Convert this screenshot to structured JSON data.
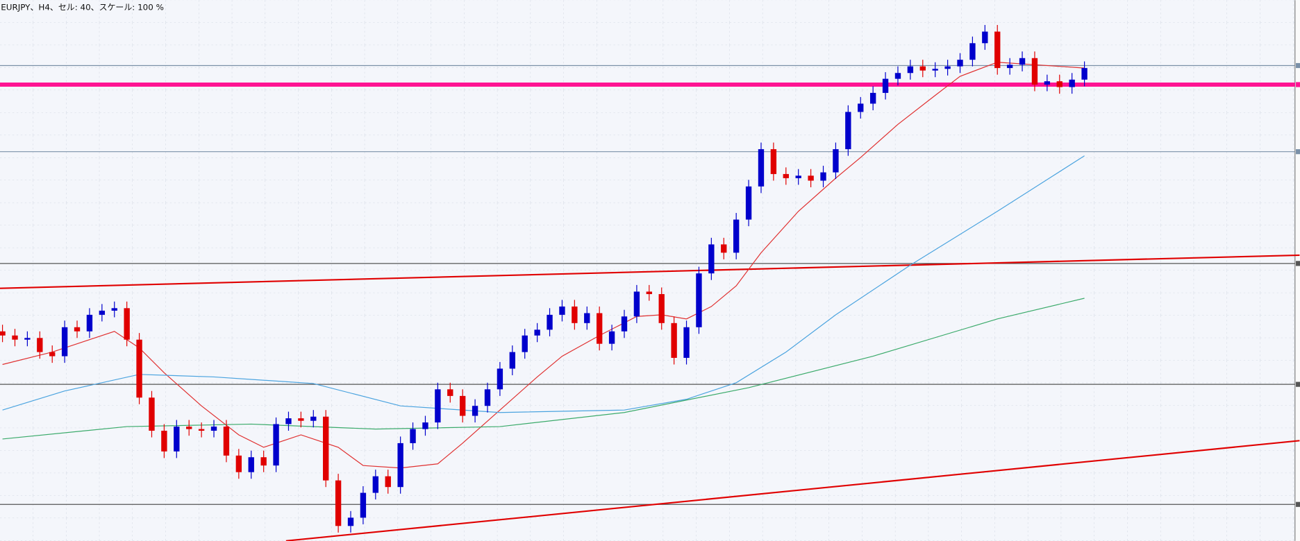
{
  "chart_data": {
    "type": "candlestick",
    "title": "EURJPY、H4、セル: 40、スケール: 100 %",
    "ylim": [
      124.47,
      131
    ],
    "xlim": [
      -0.2,
      104.3
    ],
    "up_color": "#0000cc",
    "down_color": "#e00000",
    "open": [
      127.0,
      126.95,
      126.9,
      126.92,
      126.75,
      126.7,
      127.05,
      127,
      127.2,
      127.25,
      127.28,
      126.9,
      126.2,
      125.8,
      125.55,
      125.85,
      125.82,
      125.8,
      125.85,
      125.5,
      125.3,
      125.48,
      125.38,
      125.88,
      125.95,
      125.92,
      125.97,
      125.2,
      124.65,
      124.75,
      125.05,
      125.25,
      125.12,
      125.65,
      125.82,
      125.9,
      126.3,
      126.22,
      125.98,
      126.1,
      126.3,
      126.55,
      126.75,
      126.95,
      127.02,
      127.2,
      127.3,
      127.1,
      127.22,
      126.85,
      127,
      127.18,
      127.48,
      127.45,
      127.1,
      126.68,
      127.05,
      127.7,
      128.05,
      127.95,
      128.35,
      128.75,
      129.2,
      128.9,
      128.85,
      128.88,
      128.82,
      128.92,
      129.2,
      129.65,
      129.75,
      129.88,
      130.05,
      130.12,
      130.2,
      130.15,
      130.17,
      130.2,
      130.28,
      130.48,
      130.62,
      130.18,
      130.22,
      130.3,
      129.98,
      130.02,
      129.95,
      130.04
    ],
    "high": [
      127.08,
      127.03,
      127.0,
      127.0,
      126.83,
      127.13,
      127.13,
      127.28,
      127.33,
      127.36,
      127.36,
      126.98,
      126.28,
      125.88,
      125.93,
      125.93,
      125.9,
      125.93,
      125.93,
      125.58,
      125.56,
      125.56,
      125.96,
      126.03,
      126.03,
      126.05,
      126.05,
      125.28,
      124.83,
      125.13,
      125.33,
      125.33,
      125.73,
      125.9,
      125.98,
      126.38,
      126.38,
      126.3,
      126.18,
      126.38,
      126.63,
      126.83,
      127.03,
      127.1,
      127.28,
      127.38,
      127.38,
      127.3,
      127.3,
      127.08,
      127.26,
      127.56,
      127.56,
      127.53,
      127.18,
      127.13,
      127.78,
      128.13,
      128.13,
      128.43,
      128.83,
      129.28,
      129.28,
      128.98,
      128.96,
      128.96,
      129.0,
      129.28,
      129.73,
      129.83,
      129.96,
      130.13,
      130.2,
      130.28,
      130.28,
      130.25,
      130.28,
      130.36,
      130.56,
      130.7,
      130.7,
      130.3,
      130.38,
      130.38,
      130.1,
      130.1,
      130.12,
      130.26
    ],
    "low": [
      126.87,
      126.82,
      126.82,
      126.67,
      126.62,
      126.62,
      126.92,
      126.92,
      127.12,
      127.17,
      126.82,
      126.12,
      125.72,
      125.47,
      125.47,
      125.74,
      125.72,
      125.72,
      125.42,
      125.22,
      125.22,
      125.3,
      125.3,
      125.8,
      125.84,
      125.84,
      125.12,
      124.57,
      124.57,
      124.67,
      124.97,
      125.04,
      125.04,
      125.57,
      125.74,
      125.82,
      126.14,
      125.9,
      125.9,
      126.02,
      126.22,
      126.47,
      126.67,
      126.87,
      126.94,
      127.12,
      127.02,
      127.02,
      126.77,
      126.77,
      126.92,
      127.1,
      127.37,
      127.02,
      126.6,
      126.6,
      126.97,
      127.62,
      127.87,
      127.87,
      128.27,
      128.67,
      128.82,
      128.77,
      128.77,
      128.74,
      128.74,
      128.84,
      129.12,
      129.57,
      129.67,
      129.8,
      129.97,
      130.04,
      130.07,
      130.07,
      130.09,
      130.12,
      130.2,
      130.4,
      130.1,
      130.1,
      130.14,
      129.9,
      129.9,
      129.87,
      129.87,
      129.96
    ],
    "close": [
      126.95,
      126.9,
      126.92,
      126.75,
      126.7,
      127.05,
      127,
      127.2,
      127.25,
      127.28,
      126.9,
      126.2,
      125.8,
      125.55,
      125.85,
      125.82,
      125.8,
      125.85,
      125.5,
      125.3,
      125.48,
      125.38,
      125.88,
      125.95,
      125.92,
      125.97,
      125.2,
      124.65,
      124.75,
      125.05,
      125.25,
      125.12,
      125.65,
      125.82,
      125.9,
      126.3,
      126.22,
      125.98,
      126.1,
      126.3,
      126.55,
      126.75,
      126.95,
      127.02,
      127.2,
      127.3,
      127.1,
      127.22,
      126.85,
      127,
      127.18,
      127.48,
      127.45,
      127.1,
      126.68,
      127.05,
      127.7,
      128.05,
      127.95,
      128.35,
      128.75,
      129.2,
      128.9,
      128.85,
      128.88,
      128.82,
      128.92,
      129.2,
      129.65,
      129.75,
      129.88,
      130.05,
      130.12,
      130.2,
      130.15,
      130.17,
      130.2,
      130.28,
      130.48,
      130.62,
      130.18,
      130.22,
      130.3,
      129.98,
      130.02,
      129.95,
      130.04,
      130.18
    ],
    "series": [
      {
        "color": "#e03030",
        "x": [
          0,
          4,
          7,
          9,
          11,
          13,
          16,
          19,
          21,
          24,
          27,
          29,
          32,
          35,
          37,
          40,
          43,
          45,
          48,
          51,
          53,
          55,
          57,
          59,
          61,
          64,
          67,
          69,
          72,
          75,
          77,
          80,
          83,
          85,
          87
        ],
        "values": [
          126.6,
          126.75,
          126.9,
          127.0,
          126.8,
          126.5,
          126.1,
          125.75,
          125.6,
          125.75,
          125.6,
          125.38,
          125.35,
          125.4,
          125.65,
          126.05,
          126.45,
          126.7,
          126.95,
          127.18,
          127.2,
          127.15,
          127.3,
          127.55,
          127.95,
          128.45,
          128.85,
          129.1,
          129.5,
          129.85,
          130.08,
          130.25,
          130.22,
          130.2,
          130.18
        ]
      },
      {
        "color": "#4aa3df",
        "x": [
          0,
          5,
          11,
          17,
          25,
          32,
          40,
          50,
          55,
          59,
          63,
          67,
          73,
          80,
          87
        ],
        "values": [
          126.05,
          126.28,
          126.48,
          126.45,
          126.37,
          126.1,
          126.02,
          126.05,
          126.18,
          126.38,
          126.75,
          127.2,
          127.8,
          128.45,
          129.12
        ]
      },
      {
        "color": "#3aaa6a",
        "x": [
          0,
          10,
          20,
          30,
          40,
          50,
          60,
          70,
          80,
          87
        ],
        "values": [
          125.7,
          125.85,
          125.88,
          125.82,
          125.85,
          126.02,
          126.32,
          126.7,
          127.15,
          127.4
        ]
      }
    ],
    "hlines": [
      {
        "value": 130.21,
        "color": "#7a90a8",
        "width": 1
      },
      {
        "value": 129.98,
        "color": "#ff1493",
        "width": 5
      },
      {
        "value": 129.17,
        "color": "#7a90a8",
        "width": 1
      },
      {
        "value": 127.82,
        "color": "#555555",
        "width": 1
      },
      {
        "value": 126.36,
        "color": "#555555",
        "width": 1
      },
      {
        "value": 124.91,
        "color": "#555555",
        "width": 1
      }
    ],
    "trendlines": [
      {
        "color": "#e00000",
        "x": [
          -0.2,
          104.3
        ],
        "y": [
          127.52,
          127.92
        ]
      },
      {
        "color": "#e00000",
        "x": [
          22.8,
          104.3
        ],
        "y": [
          124.47,
          125.68
        ]
      }
    ]
  }
}
